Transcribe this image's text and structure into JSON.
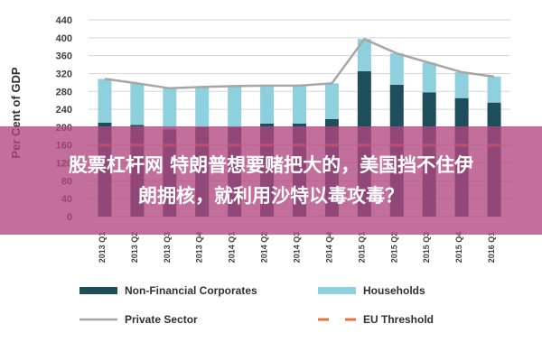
{
  "chart_data": {
    "type": "bar",
    "title": "",
    "ylabel": "Per Cent of GDP",
    "xlabel": "",
    "ylim": [
      0,
      440
    ],
    "yticks": [
      0,
      40,
      80,
      120,
      160,
      200,
      240,
      280,
      320,
      360,
      400,
      440
    ],
    "grid": true,
    "legend_position": "bottom",
    "categories": [
      "2013 Q1",
      "2013 Q2",
      "2013 Q3",
      "2013 Q4",
      "2014 Q1",
      "2014 Q2",
      "2014 Q3",
      "2014 Q4",
      "2015 Q1",
      "2015 Q2",
      "2015 Q3",
      "2015 Q4",
      "2016 Q1"
    ],
    "series": [
      {
        "name": "Non-Financial Corporates",
        "kind": "stacked-bar",
        "color": "#1e4d5c",
        "values": [
          210,
          205,
          195,
          200,
          200,
          208,
          208,
          218,
          325,
          295,
          278,
          265,
          255
        ]
      },
      {
        "name": "Households",
        "kind": "stacked-bar",
        "color": "#8fd0de",
        "values": [
          98,
          93,
          92,
          90,
          92,
          85,
          85,
          80,
          72,
          70,
          66,
          58,
          58
        ]
      },
      {
        "name": "Private Sector",
        "kind": "line",
        "color": "#a6a6a6",
        "values": [
          308,
          298,
          287,
          290,
          292,
          293,
          293,
          298,
          397,
          365,
          344,
          323,
          313
        ]
      },
      {
        "name": "EU Threshold",
        "kind": "dashed-line",
        "color": "#e8703a",
        "values": [
          160,
          160,
          160,
          160,
          160,
          160,
          160,
          160,
          160,
          160,
          160,
          160,
          160
        ]
      }
    ]
  },
  "overlay": {
    "line1": "股票杠杆网 特朗普想要赌把大的，美国挡不住伊",
    "line2": "朗拥核，就利用沙特以毒攻毒？"
  }
}
